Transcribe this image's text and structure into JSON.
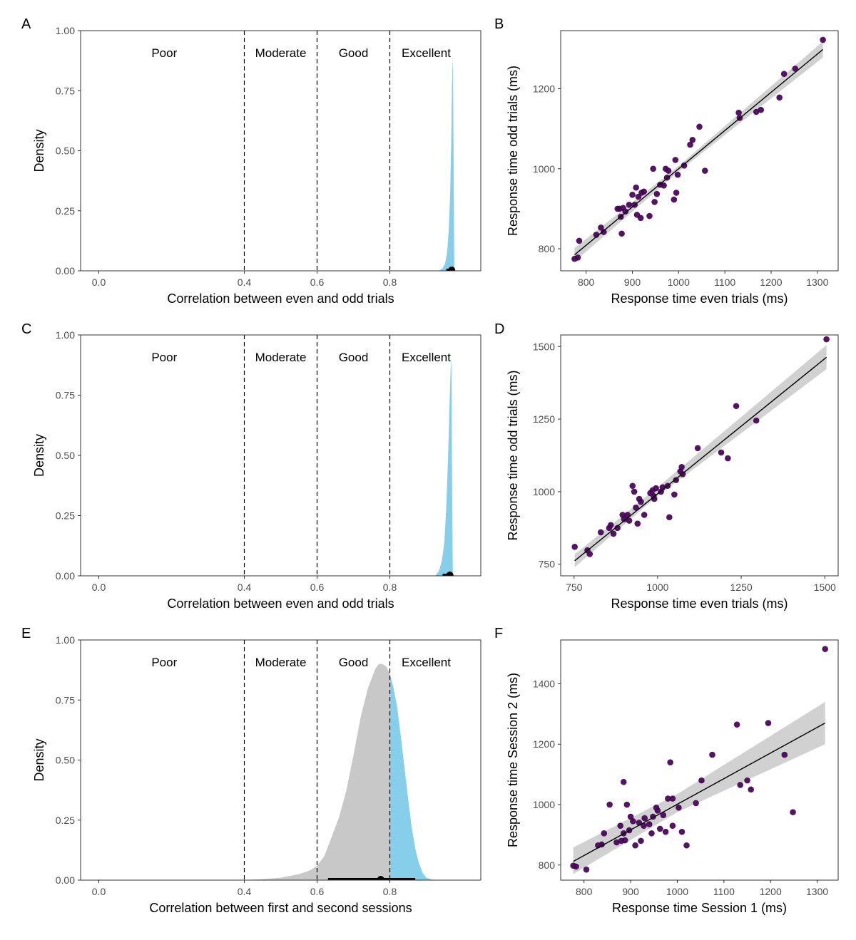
{
  "colors": {
    "density_fill": "#87ceeb",
    "density_grey": "#c8c8c8",
    "point": "#440154",
    "line": "#000000",
    "ribbon": "#cccccc"
  },
  "chart_data": [
    {
      "panel": "A",
      "type": "area",
      "xlabel": "Correlation between even and odd trials",
      "ylabel": "Density",
      "xlim": [
        -0.05,
        1.05
      ],
      "ylim": [
        0,
        1
      ],
      "x_ticks": [
        "0.0",
        "0.4",
        "0.6",
        "0.8"
      ],
      "x_tick_values": [
        0.0,
        0.4,
        0.6,
        0.8
      ],
      "y_ticks": [
        "0.00",
        "0.25",
        "0.50",
        "0.75",
        "1.00"
      ],
      "y_tick_values": [
        0,
        0.25,
        0.5,
        0.75,
        1.0
      ],
      "thresholds": [
        0.4,
        0.6,
        0.8
      ],
      "bands": [
        "Poor",
        "Moderate",
        "Good",
        "Excellent"
      ],
      "band_centers": [
        0.18,
        0.5,
        0.7,
        0.9
      ],
      "density": {
        "x": [
          0.935,
          0.945,
          0.952,
          0.958,
          0.962,
          0.966,
          0.969,
          0.971,
          0.973,
          0.975,
          0.977
        ],
        "y": [
          0.0,
          0.01,
          0.03,
          0.08,
          0.17,
          0.32,
          0.55,
          0.77,
          0.89,
          0.5,
          0.0
        ]
      },
      "highlight_threshold": 0.8,
      "point_estimate": 0.97,
      "interval": [
        0.955,
        0.975
      ]
    },
    {
      "panel": "B",
      "type": "scatter",
      "xlabel": "Response time even trials (ms)",
      "ylabel": "Response time odd trials (ms)",
      "xlim": [
        745,
        1345
      ],
      "ylim": [
        745,
        1345
      ],
      "x_ticks": [
        "800",
        "900",
        "1000",
        "1100",
        "1200",
        "1300"
      ],
      "x_tick_values": [
        800,
        900,
        1000,
        1100,
        1200,
        1300
      ],
      "y_ticks": [
        "800",
        "1000",
        "1200"
      ],
      "y_tick_values": [
        800,
        1000,
        1200
      ],
      "fit": {
        "x": [
          775,
          1312
        ],
        "y": [
          785,
          1298
        ]
      },
      "ribbon": {
        "x": [
          775,
          1000,
          1312
        ],
        "lo": [
          768,
          993,
          1278
        ],
        "hi": [
          802,
          1007,
          1318
        ]
      },
      "points": [
        [
          775,
          775
        ],
        [
          782,
          778
        ],
        [
          785,
          820
        ],
        [
          822,
          835
        ],
        [
          832,
          853
        ],
        [
          838,
          842
        ],
        [
          868,
          900
        ],
        [
          872,
          900
        ],
        [
          875,
          880
        ],
        [
          880,
          902
        ],
        [
          877,
          838
        ],
        [
          885,
          893
        ],
        [
          893,
          910
        ],
        [
          900,
          935
        ],
        [
          905,
          910
        ],
        [
          908,
          953
        ],
        [
          910,
          885
        ],
        [
          913,
          930
        ],
        [
          918,
          877
        ],
        [
          920,
          940
        ],
        [
          925,
          943
        ],
        [
          937,
          882
        ],
        [
          945,
          1000
        ],
        [
          948,
          917
        ],
        [
          953,
          937
        ],
        [
          960,
          960
        ],
        [
          968,
          958
        ],
        [
          972,
          1000
        ],
        [
          975,
          978
        ],
        [
          978,
          995
        ],
        [
          990,
          923
        ],
        [
          993,
          1022
        ],
        [
          995,
          940
        ],
        [
          998,
          985
        ],
        [
          1012,
          1008
        ],
        [
          1025,
          1060
        ],
        [
          1030,
          1072
        ],
        [
          1045,
          1105
        ],
        [
          1057,
          995
        ],
        [
          1130,
          1140
        ],
        [
          1132,
          1127
        ],
        [
          1168,
          1142
        ],
        [
          1178,
          1147
        ],
        [
          1218,
          1178
        ],
        [
          1228,
          1237
        ],
        [
          1252,
          1250
        ],
        [
          1312,
          1322
        ]
      ]
    },
    {
      "panel": "C",
      "type": "area",
      "xlabel": "Correlation between even and odd trials",
      "ylabel": "Density",
      "xlim": [
        -0.05,
        1.05
      ],
      "ylim": [
        0,
        1
      ],
      "x_ticks": [
        "0.0",
        "0.4",
        "0.6",
        "0.8"
      ],
      "x_tick_values": [
        0.0,
        0.4,
        0.6,
        0.8
      ],
      "y_ticks": [
        "0.00",
        "0.25",
        "0.50",
        "0.75",
        "1.00"
      ],
      "y_tick_values": [
        0,
        0.25,
        0.5,
        0.75,
        1.0
      ],
      "thresholds": [
        0.4,
        0.6,
        0.8
      ],
      "bands": [
        "Poor",
        "Moderate",
        "Good",
        "Excellent"
      ],
      "band_centers": [
        0.18,
        0.5,
        0.7,
        0.9
      ],
      "density": {
        "x": [
          0.925,
          0.935,
          0.943,
          0.95,
          0.955,
          0.96,
          0.964,
          0.967,
          0.969,
          0.971,
          0.973
        ],
        "y": [
          0.0,
          0.02,
          0.06,
          0.14,
          0.28,
          0.48,
          0.7,
          0.85,
          0.9,
          0.4,
          0.0
        ]
      },
      "highlight_threshold": 0.8,
      "point_estimate": 0.965,
      "interval": [
        0.945,
        0.972
      ]
    },
    {
      "panel": "D",
      "type": "scatter",
      "xlabel": "Response time even trials (ms)",
      "ylabel": "Response time odd trials (ms)",
      "xlim": [
        710,
        1540
      ],
      "ylim": [
        710,
        1540
      ],
      "x_ticks": [
        "750",
        "1000",
        "1250",
        "1500"
      ],
      "x_tick_values": [
        750,
        1000,
        1250,
        1500
      ],
      "y_ticks": [
        "750",
        "1000",
        "1250",
        "1500"
      ],
      "y_tick_values": [
        750,
        1000,
        1250,
        1500
      ],
      "fit": {
        "x": [
          752,
          1505
        ],
        "y": [
          762,
          1463
        ]
      },
      "ribbon": {
        "x": [
          752,
          1000,
          1505
        ],
        "lo": [
          740,
          985,
          1422
        ],
        "hi": [
          784,
          1015,
          1505
        ]
      },
      "points": [
        [
          752,
          810
        ],
        [
          790,
          798
        ],
        [
          797,
          785
        ],
        [
          830,
          860
        ],
        [
          855,
          875
        ],
        [
          860,
          885
        ],
        [
          868,
          855
        ],
        [
          880,
          875
        ],
        [
          895,
          920
        ],
        [
          900,
          905
        ],
        [
          910,
          920
        ],
        [
          915,
          900
        ],
        [
          925,
          1020
        ],
        [
          930,
          1000
        ],
        [
          935,
          945
        ],
        [
          940,
          890
        ],
        [
          945,
          975
        ],
        [
          950,
          965
        ],
        [
          960,
          920
        ],
        [
          978,
          995
        ],
        [
          985,
          1005
        ],
        [
          988,
          985
        ],
        [
          990,
          975
        ],
        [
          995,
          1012
        ],
        [
          1010,
          1000
        ],
        [
          1015,
          1015
        ],
        [
          1030,
          1020
        ],
        [
          1035,
          912
        ],
        [
          1050,
          990
        ],
        [
          1055,
          1040
        ],
        [
          1068,
          1070
        ],
        [
          1072,
          1085
        ],
        [
          1075,
          1060
        ],
        [
          1120,
          1150
        ],
        [
          1190,
          1135
        ],
        [
          1210,
          1115
        ],
        [
          1235,
          1295
        ],
        [
          1295,
          1245
        ],
        [
          1505,
          1525
        ]
      ]
    },
    {
      "panel": "E",
      "type": "area",
      "xlabel": "Correlation between first and second sessions",
      "ylabel": "Density",
      "xlim": [
        -0.05,
        1.05
      ],
      "ylim": [
        0,
        1
      ],
      "x_ticks": [
        "0.0",
        "0.4",
        "0.6",
        "0.8"
      ],
      "x_tick_values": [
        0.0,
        0.4,
        0.6,
        0.8
      ],
      "y_ticks": [
        "0.00",
        "0.25",
        "0.50",
        "0.75",
        "1.00"
      ],
      "y_tick_values": [
        0,
        0.25,
        0.5,
        0.75,
        1.0
      ],
      "thresholds": [
        0.4,
        0.6,
        0.8
      ],
      "bands": [
        "Poor",
        "Moderate",
        "Good",
        "Excellent"
      ],
      "band_centers": [
        0.18,
        0.5,
        0.7,
        0.9
      ],
      "density": {
        "x": [
          0.4,
          0.45,
          0.5,
          0.55,
          0.58,
          0.6,
          0.62,
          0.64,
          0.66,
          0.68,
          0.7,
          0.72,
          0.74,
          0.76,
          0.77,
          0.78,
          0.79,
          0.8,
          0.81,
          0.82,
          0.83,
          0.84,
          0.85,
          0.86,
          0.87,
          0.88,
          0.89,
          0.9,
          0.92
        ],
        "y": [
          0.0,
          0.004,
          0.01,
          0.025,
          0.04,
          0.06,
          0.1,
          0.18,
          0.26,
          0.37,
          0.52,
          0.68,
          0.8,
          0.88,
          0.9,
          0.9,
          0.89,
          0.86,
          0.8,
          0.72,
          0.6,
          0.47,
          0.34,
          0.22,
          0.13,
          0.07,
          0.03,
          0.01,
          0.0
        ]
      },
      "highlight_threshold": 0.8,
      "point_estimate": 0.775,
      "interval": [
        0.63,
        0.87
      ]
    },
    {
      "panel": "F",
      "type": "scatter",
      "xlabel": "Response time Session 1 (ms)",
      "ylabel": "Response time Session 2 (ms)",
      "xlim": [
        750,
        1345
      ],
      "ylim": [
        750,
        1545
      ],
      "x_ticks": [
        "800",
        "900",
        "1000",
        "1100",
        "1200",
        "1300"
      ],
      "x_tick_values": [
        800,
        900,
        1000,
        1100,
        1200,
        1300
      ],
      "y_ticks": [
        "800",
        "1000",
        "1200",
        "1400"
      ],
      "y_tick_values": [
        800,
        1000,
        1200,
        1400
      ],
      "fit": {
        "x": [
          777,
          1317
        ],
        "y": [
          812,
          1270
        ]
      },
      "ribbon": {
        "x": [
          777,
          1000,
          1317
        ],
        "lo": [
          770,
          975,
          1200
        ],
        "hi": [
          858,
          1035,
          1340
        ]
      },
      "points": [
        [
          777,
          798
        ],
        [
          783,
          795
        ],
        [
          805,
          785
        ],
        [
          830,
          865
        ],
        [
          838,
          868
        ],
        [
          843,
          905
        ],
        [
          855,
          1000
        ],
        [
          870,
          875
        ],
        [
          878,
          930
        ],
        [
          880,
          880
        ],
        [
          885,
          1075
        ],
        [
          885,
          905
        ],
        [
          888,
          882
        ],
        [
          892,
          1000
        ],
        [
          897,
          915
        ],
        [
          900,
          960
        ],
        [
          905,
          945
        ],
        [
          910,
          865
        ],
        [
          918,
          940
        ],
        [
          922,
          880
        ],
        [
          928,
          930
        ],
        [
          930,
          955
        ],
        [
          940,
          935
        ],
        [
          945,
          905
        ],
        [
          948,
          960
        ],
        [
          955,
          990
        ],
        [
          958,
          980
        ],
        [
          963,
          920
        ],
        [
          970,
          965
        ],
        [
          975,
          910
        ],
        [
          980,
          1020
        ],
        [
          985,
          1140
        ],
        [
          990,
          1020
        ],
        [
          990,
          930
        ],
        [
          1003,
          990
        ],
        [
          1010,
          910
        ],
        [
          1020,
          865
        ],
        [
          1040,
          1005
        ],
        [
          1052,
          1080
        ],
        [
          1075,
          1165
        ],
        [
          1128,
          1265
        ],
        [
          1135,
          1065
        ],
        [
          1150,
          1080
        ],
        [
          1158,
          1050
        ],
        [
          1195,
          1270
        ],
        [
          1230,
          1165
        ],
        [
          1248,
          975
        ],
        [
          1317,
          1515
        ]
      ]
    }
  ]
}
